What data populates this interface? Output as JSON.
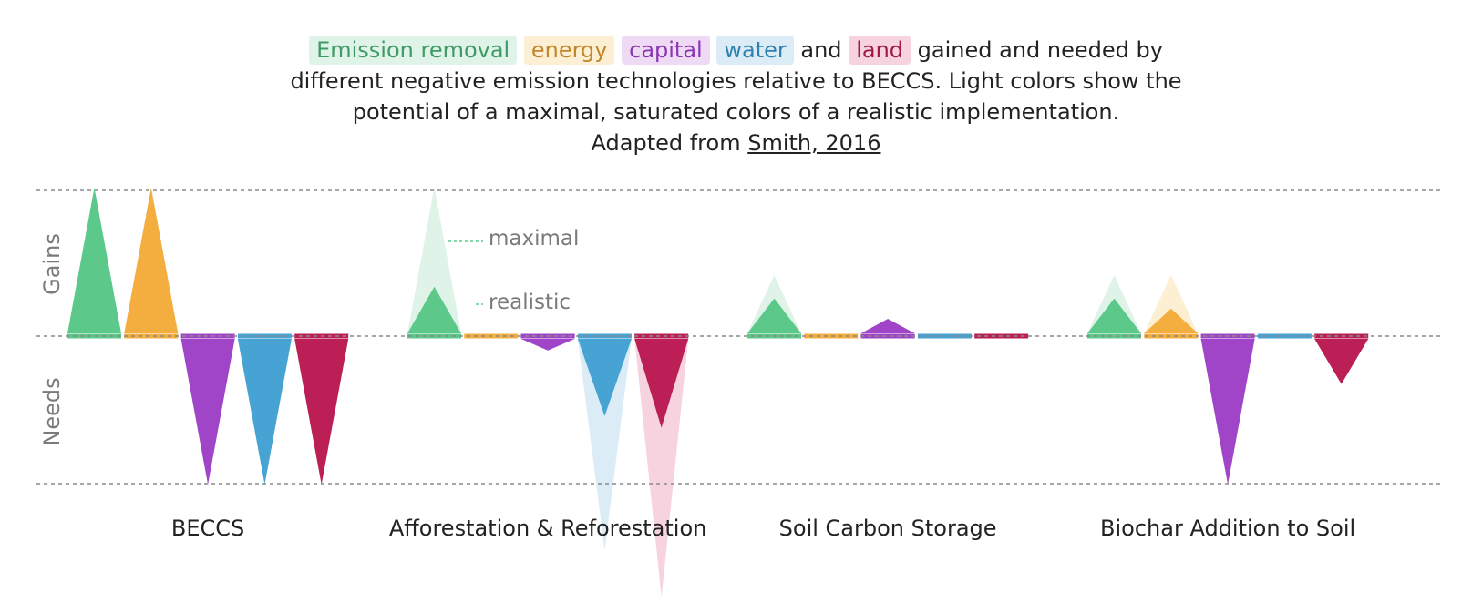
{
  "caption": {
    "legend": [
      {
        "key": "emission",
        "label": "Emission removal"
      },
      {
        "key": "energy",
        "label": "energy"
      },
      {
        "key": "capital",
        "label": "capital"
      },
      {
        "key": "water",
        "label": "water"
      },
      {
        "key": "land",
        "label": "land"
      }
    ],
    "and_word": "and",
    "text_after": "gained and needed by different negative emission technologies relative to BECCS. Light colors show the potential of a maximal, saturated colors of a realistic implementation.",
    "adapted_prefix": "Adapted from",
    "reference_link": "Smith, 2016"
  },
  "colors": {
    "emission": {
      "main": "#5cc98a",
      "light": "#dff3e8",
      "text": "#3e9b64"
    },
    "energy": {
      "main": "#f4ae40",
      "light": "#fdefd4",
      "text": "#c0862a"
    },
    "capital": {
      "main": "#a044c8",
      "light": "#efdaf5",
      "text": "#8a34b0"
    },
    "water": {
      "main": "#46a3d3",
      "light": "#dbecf7",
      "text": "#2f82b0"
    },
    "land": {
      "main": "#bb1f56",
      "light": "#f6d3de",
      "text": "#a01a48"
    }
  },
  "chart_data": {
    "type": "bar",
    "y_axis_labels": {
      "gains": "Gains",
      "needs": "Needs"
    },
    "ylim": [
      -1,
      1
    ],
    "annotations": {
      "maximal": "maximal",
      "realistic": "realistic"
    },
    "categories": [
      "BECCS",
      "Afforestation & Reforestation",
      "Soil Carbon Storage",
      "Biochar Addition to Soil"
    ],
    "series": [
      {
        "key": "emission",
        "name": "Emission removal",
        "realistic": [
          1.0,
          0.32,
          0.24,
          0.24
        ],
        "maximal": [
          1.0,
          1.0,
          0.4,
          0.4
        ]
      },
      {
        "key": "energy",
        "name": "energy",
        "realistic": [
          1.0,
          0.0,
          0.0,
          0.17
        ],
        "maximal": [
          1.0,
          0.0,
          0.0,
          0.4
        ]
      },
      {
        "key": "capital",
        "name": "capital",
        "realistic": [
          -1.0,
          -0.08,
          0.1,
          -1.0
        ],
        "maximal": [
          -1.0,
          -0.08,
          0.1,
          -1.0
        ]
      },
      {
        "key": "water",
        "name": "water",
        "realistic": [
          -1.0,
          -0.53,
          0.0,
          0.0
        ],
        "maximal": [
          -1.0,
          -1.45,
          0.0,
          0.0
        ]
      },
      {
        "key": "land",
        "name": "land",
        "realistic": [
          -1.0,
          -0.61,
          0.0,
          -0.31
        ],
        "maximal": [
          -1.0,
          -1.77,
          0.0,
          -0.31
        ]
      }
    ]
  }
}
